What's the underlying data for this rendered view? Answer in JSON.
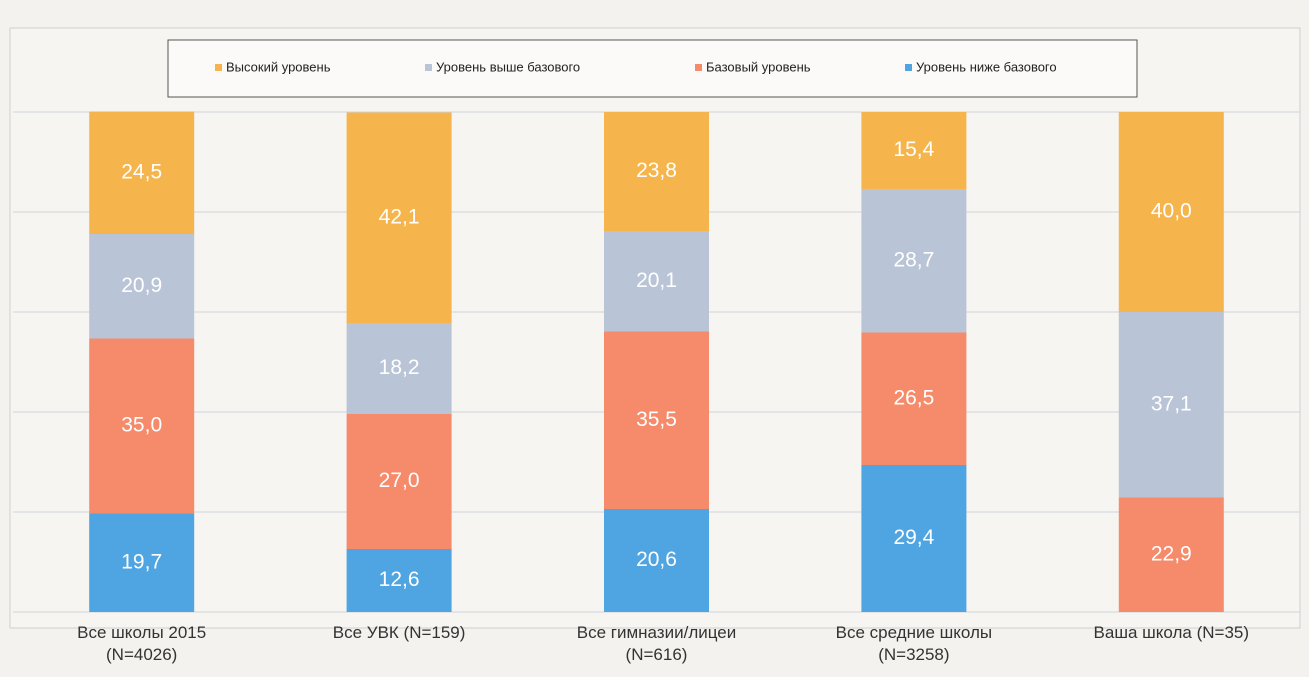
{
  "chart_data": {
    "type": "stacked_bar",
    "categories": [
      "Все школы 2015\n(N=4026)",
      "Все УВК (N=159)",
      "Все гимназии/лицеи\n(N=616)",
      "Все средние школы\n(N=3258)",
      "Ваша школа (N=35)"
    ],
    "series": [
      {
        "name": "Высокий уровень",
        "color": "#f6b54c",
        "values": [
          24.5,
          42.1,
          23.8,
          15.4,
          40.0
        ],
        "value_labels": [
          "24,5",
          "42,1",
          "23,8",
          "15,4",
          "40,0"
        ]
      },
      {
        "name": "Уровень выше базового",
        "color": "#b9c5d6",
        "values": [
          20.9,
          18.2,
          20.1,
          28.7,
          37.1
        ],
        "value_labels": [
          "20,9",
          "18,2",
          "20,1",
          "28,7",
          "37,1"
        ]
      },
      {
        "name": "Базовый уровень",
        "color": "#f58b6b",
        "values": [
          35.0,
          27.0,
          35.5,
          26.5,
          22.9
        ],
        "value_labels": [
          "35,0",
          "27,0",
          "35,5",
          "26,5",
          "22,9"
        ]
      },
      {
        "name": "Уровень ниже базового",
        "color": "#4fa5e2",
        "values": [
          19.7,
          12.6,
          20.6,
          29.4,
          null
        ],
        "value_labels": [
          "19,7",
          "12,6",
          "20,6",
          "29,4",
          null
        ]
      }
    ],
    "ylim": [
      0,
      100
    ],
    "yticks": [
      0,
      20,
      40,
      60,
      80,
      100
    ],
    "grid": true,
    "legend": "top"
  }
}
